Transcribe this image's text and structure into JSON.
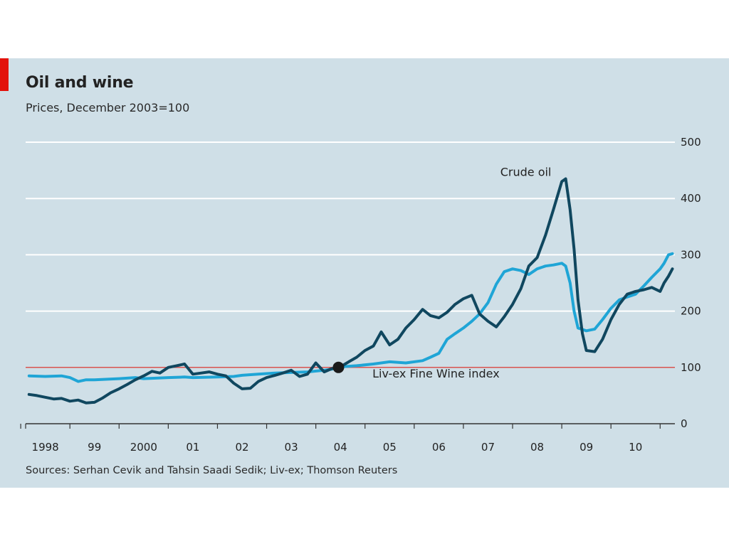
{
  "header": {
    "title": "Oil and wine",
    "subtitle": "Prices, December 2003=100"
  },
  "footer": {
    "source": "Sources: Serhan Cevik and Tahsin Saadi Sedik; Liv-ex; Thomson Reuters"
  },
  "colors": {
    "background": "#cfdfe7",
    "accent_tag": "#e3120b",
    "crude_oil": "#10475f",
    "wine": "#1fa5d6",
    "baseline": "#d9534f",
    "grid": "#ffffff",
    "marker": "#1a1a1a"
  },
  "chart_data": {
    "type": "line",
    "title": "Oil and wine",
    "subtitle": "Prices, December 2003=100",
    "xlim": [
      1997.6,
      2010.8
    ],
    "ylim": [
      0,
      500
    ],
    "y_ticks": [
      0,
      100,
      200,
      300,
      400,
      500
    ],
    "y_axis_side": "right",
    "x_tick_labels": [
      {
        "label": "1998",
        "x": 1998.0
      },
      {
        "label": "99",
        "x": 1999.0
      },
      {
        "label": "2000",
        "x": 2000.0
      },
      {
        "label": "01",
        "x": 2001.0
      },
      {
        "label": "02",
        "x": 2002.0
      },
      {
        "label": "03",
        "x": 2003.0
      },
      {
        "label": "04",
        "x": 2004.0
      },
      {
        "label": "05",
        "x": 2005.0
      },
      {
        "label": "06",
        "x": 2006.0
      },
      {
        "label": "07",
        "x": 2007.0
      },
      {
        "label": "08",
        "x": 2008.0
      },
      {
        "label": "09",
        "x": 2009.0
      },
      {
        "label": "10",
        "x": 2010.0
      }
    ],
    "grid": "horizontal",
    "reference_line": 100,
    "marker_point": {
      "x": 2003.96,
      "y": 100
    },
    "annotations": [
      {
        "text": "Crude oil",
        "x": 2007.25,
        "y": 440
      },
      {
        "text": "Liv-ex Fine Wine index",
        "x": 2004.65,
        "y": 82
      }
    ],
    "series": [
      {
        "name": "Crude oil",
        "points": [
          [
            1997.67,
            52
          ],
          [
            1997.83,
            50
          ],
          [
            1998.0,
            47
          ],
          [
            1998.17,
            44
          ],
          [
            1998.33,
            45
          ],
          [
            1998.5,
            40
          ],
          [
            1998.67,
            42
          ],
          [
            1998.83,
            37
          ],
          [
            1999.0,
            38
          ],
          [
            1999.17,
            46
          ],
          [
            1999.33,
            55
          ],
          [
            1999.5,
            62
          ],
          [
            1999.67,
            70
          ],
          [
            1999.83,
            78
          ],
          [
            2000.0,
            85
          ],
          [
            2000.17,
            93
          ],
          [
            2000.33,
            90
          ],
          [
            2000.5,
            100
          ],
          [
            2000.67,
            103
          ],
          [
            2000.83,
            106
          ],
          [
            2001.0,
            88
          ],
          [
            2001.17,
            90
          ],
          [
            2001.33,
            92
          ],
          [
            2001.5,
            88
          ],
          [
            2001.67,
            85
          ],
          [
            2001.83,
            72
          ],
          [
            2002.0,
            62
          ],
          [
            2002.17,
            63
          ],
          [
            2002.33,
            75
          ],
          [
            2002.5,
            82
          ],
          [
            2002.67,
            86
          ],
          [
            2002.83,
            90
          ],
          [
            2003.0,
            95
          ],
          [
            2003.17,
            84
          ],
          [
            2003.33,
            88
          ],
          [
            2003.5,
            108
          ],
          [
            2003.67,
            92
          ],
          [
            2003.83,
            98
          ],
          [
            2004.0,
            101
          ],
          [
            2004.17,
            110
          ],
          [
            2004.33,
            118
          ],
          [
            2004.5,
            130
          ],
          [
            2004.67,
            138
          ],
          [
            2004.83,
            163
          ],
          [
            2005.0,
            140
          ],
          [
            2005.17,
            150
          ],
          [
            2005.33,
            170
          ],
          [
            2005.5,
            185
          ],
          [
            2005.67,
            203
          ],
          [
            2005.83,
            192
          ],
          [
            2006.0,
            188
          ],
          [
            2006.17,
            198
          ],
          [
            2006.33,
            212
          ],
          [
            2006.5,
            222
          ],
          [
            2006.67,
            228
          ],
          [
            2006.83,
            195
          ],
          [
            2007.0,
            182
          ],
          [
            2007.17,
            172
          ],
          [
            2007.33,
            190
          ],
          [
            2007.5,
            212
          ],
          [
            2007.67,
            240
          ],
          [
            2007.83,
            280
          ],
          [
            2008.0,
            295
          ],
          [
            2008.17,
            335
          ],
          [
            2008.33,
            380
          ],
          [
            2008.5,
            430
          ],
          [
            2008.58,
            435
          ],
          [
            2008.67,
            380
          ],
          [
            2008.75,
            310
          ],
          [
            2008.83,
            220
          ],
          [
            2008.92,
            160
          ],
          [
            2009.0,
            130
          ],
          [
            2009.17,
            128
          ],
          [
            2009.33,
            150
          ],
          [
            2009.5,
            185
          ],
          [
            2009.67,
            212
          ],
          [
            2009.83,
            230
          ],
          [
            2010.0,
            235
          ],
          [
            2010.17,
            238
          ],
          [
            2010.33,
            242
          ],
          [
            2010.5,
            235
          ],
          [
            2010.58,
            250
          ],
          [
            2010.67,
            262
          ],
          [
            2010.75,
            275
          ]
        ]
      },
      {
        "name": "Liv-ex Fine Wine index",
        "points": [
          [
            1997.67,
            85
          ],
          [
            1998.0,
            84
          ],
          [
            1998.33,
            85
          ],
          [
            1998.5,
            82
          ],
          [
            1998.67,
            75
          ],
          [
            1998.83,
            78
          ],
          [
            1999.0,
            78
          ],
          [
            1999.5,
            80
          ],
          [
            1999.83,
            82
          ],
          [
            2000.0,
            80
          ],
          [
            2000.5,
            82
          ],
          [
            2000.83,
            83
          ],
          [
            2001.0,
            82
          ],
          [
            2001.5,
            83
          ],
          [
            2001.83,
            84
          ],
          [
            2002.0,
            86
          ],
          [
            2002.33,
            88
          ],
          [
            2002.67,
            90
          ],
          [
            2003.0,
            91
          ],
          [
            2003.33,
            92
          ],
          [
            2003.67,
            95
          ],
          [
            2003.83,
            97
          ],
          [
            2004.0,
            101
          ],
          [
            2004.33,
            103
          ],
          [
            2004.67,
            106
          ],
          [
            2005.0,
            110
          ],
          [
            2005.33,
            108
          ],
          [
            2005.67,
            112
          ],
          [
            2005.83,
            118
          ],
          [
            2006.0,
            125
          ],
          [
            2006.17,
            150
          ],
          [
            2006.33,
            160
          ],
          [
            2006.5,
            170
          ],
          [
            2006.67,
            182
          ],
          [
            2006.83,
            195
          ],
          [
            2007.0,
            215
          ],
          [
            2007.17,
            248
          ],
          [
            2007.33,
            270
          ],
          [
            2007.5,
            275
          ],
          [
            2007.67,
            272
          ],
          [
            2007.83,
            265
          ],
          [
            2008.0,
            275
          ],
          [
            2008.17,
            280
          ],
          [
            2008.33,
            282
          ],
          [
            2008.5,
            285
          ],
          [
            2008.58,
            280
          ],
          [
            2008.67,
            250
          ],
          [
            2008.75,
            200
          ],
          [
            2008.83,
            170
          ],
          [
            2009.0,
            165
          ],
          [
            2009.17,
            168
          ],
          [
            2009.33,
            185
          ],
          [
            2009.5,
            205
          ],
          [
            2009.67,
            220
          ],
          [
            2009.83,
            225
          ],
          [
            2010.0,
            230
          ],
          [
            2010.17,
            245
          ],
          [
            2010.33,
            260
          ],
          [
            2010.5,
            275
          ],
          [
            2010.58,
            285
          ],
          [
            2010.67,
            300
          ],
          [
            2010.75,
            302
          ]
        ]
      }
    ]
  }
}
